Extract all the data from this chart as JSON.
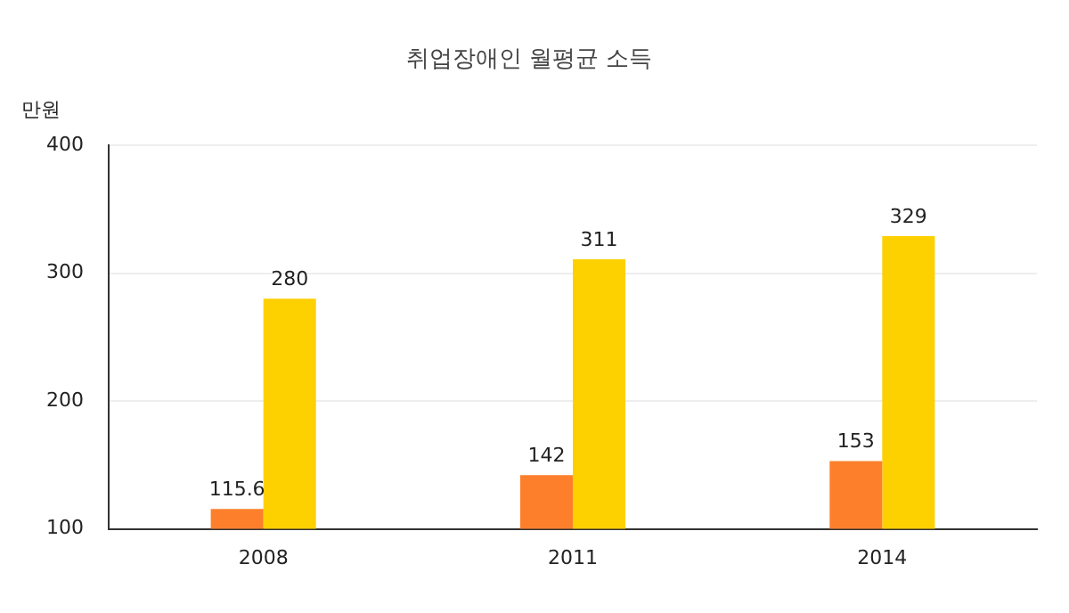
{
  "chart_data": {
    "type": "bar",
    "title": "취업장애인 월평균 소득",
    "ylabel": "만원",
    "categories": [
      "2008",
      "2011",
      "2014"
    ],
    "series": [
      {
        "color": "#fd7f2c",
        "values": [
          115.6,
          142,
          153
        ]
      },
      {
        "color": "#fdd000",
        "values": [
          280,
          311,
          329
        ]
      }
    ],
    "ylim": [
      100,
      400
    ],
    "yticks": [
      100,
      200,
      300,
      400
    ],
    "grid": "y",
    "legend": false,
    "data_labels": true
  }
}
